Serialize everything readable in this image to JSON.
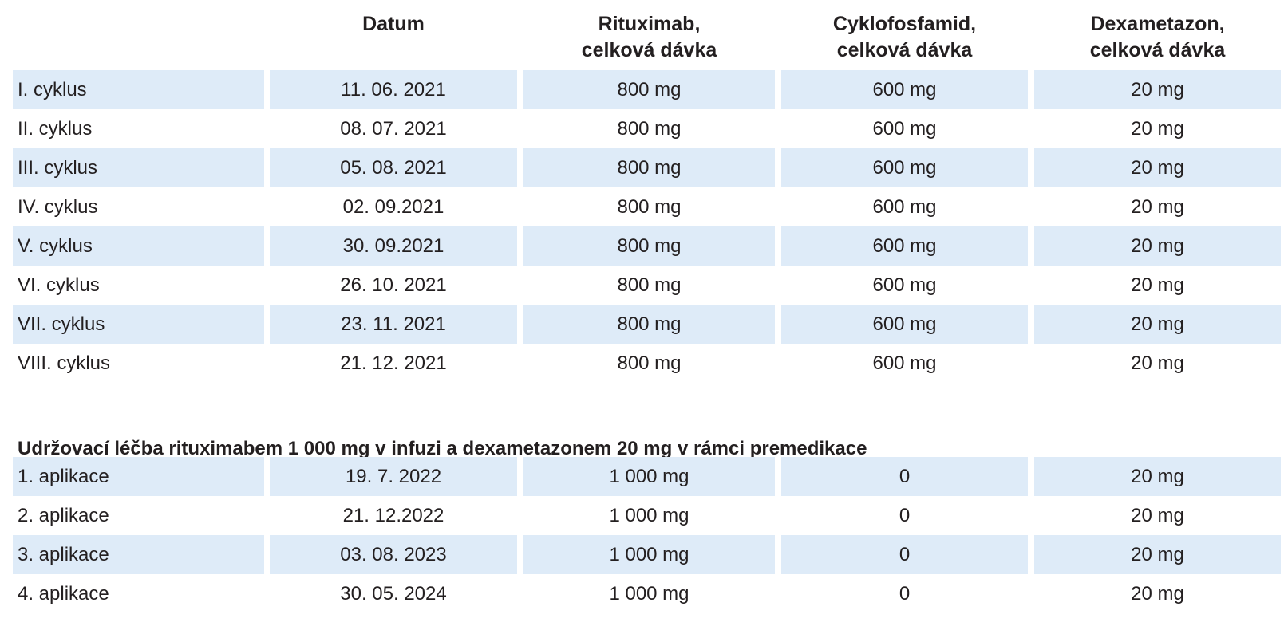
{
  "table": {
    "headers": [
      "",
      "Datum",
      "Rituximab,\ncelková dávka",
      "Cyklofosfamid,\ncelková dávka",
      "Dexametazon,\ncelková dávka"
    ],
    "cycles": [
      [
        "I. cyklus",
        "11. 06. 2021",
        "800 mg",
        "600 mg",
        "20 mg"
      ],
      [
        "II. cyklus",
        "08. 07. 2021",
        "800 mg",
        "600 mg",
        "20 mg"
      ],
      [
        "III. cyklus",
        "05. 08. 2021",
        "800 mg",
        "600 mg",
        "20 mg"
      ],
      [
        "IV. cyklus",
        "02. 09.2021",
        "800 mg",
        "600 mg",
        "20 mg"
      ],
      [
        "V. cyklus",
        "30. 09.2021",
        "800 mg",
        "600 mg",
        "20 mg"
      ],
      [
        "VI. cyklus",
        "26. 10. 2021",
        "800 mg",
        "600 mg",
        "20 mg"
      ],
      [
        "VII. cyklus",
        "23. 11. 2021",
        "800 mg",
        "600 mg",
        "20 mg"
      ],
      [
        "VIII. cyklus",
        "21. 12. 2021",
        "800 mg",
        "600 mg",
        "20 mg"
      ]
    ],
    "maintenance_title": "Udržovací léčba rituximabem 1 000 mg v infuzi a dexametazonem 20 mg v rámci premedikace",
    "maintenance": [
      [
        "1. aplikace",
        "19. 7. 2022",
        "1 000 mg",
        "0",
        "20 mg"
      ],
      [
        "2. aplikace",
        "21. 12.2022",
        "1 000 mg",
        "0",
        "20 mg"
      ],
      [
        "3. aplikace",
        "03. 08. 2023",
        "1 000 mg",
        "0",
        "20 mg"
      ],
      [
        "4. aplikace",
        "30. 05. 2024",
        "1 000 mg",
        "0",
        "20 mg"
      ]
    ]
  },
  "colors": {
    "row_shade": "#deebf8",
    "text": "#231f20"
  }
}
